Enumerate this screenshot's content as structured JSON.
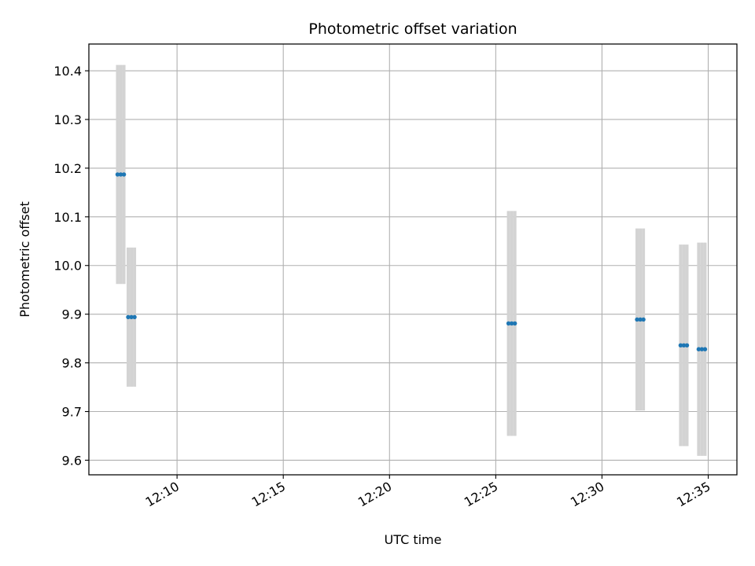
{
  "chart_data": {
    "type": "scatter",
    "title": "Photometric offset variation",
    "xlabel": "UTC time",
    "ylabel": "Photometric offset",
    "x_unit": "minutes after 12:00 UTC",
    "xlim": [
      5.85,
      36.35
    ],
    "ylim": [
      9.57,
      10.455
    ],
    "grid": true,
    "xticks": [
      {
        "value": 10,
        "label": "12:10"
      },
      {
        "value": 15,
        "label": "12:15"
      },
      {
        "value": 20,
        "label": "12:20"
      },
      {
        "value": 25,
        "label": "12:25"
      },
      {
        "value": 30,
        "label": "12:30"
      },
      {
        "value": 35,
        "label": "12:35"
      }
    ],
    "yticks": [
      {
        "value": 9.6,
        "label": "9.6"
      },
      {
        "value": 9.7,
        "label": "9.7"
      },
      {
        "value": 9.8,
        "label": "9.8"
      },
      {
        "value": 9.9,
        "label": "9.9"
      },
      {
        "value": 10.0,
        "label": "10.0"
      },
      {
        "value": 10.1,
        "label": "10.1"
      },
      {
        "value": 10.2,
        "label": "10.2"
      },
      {
        "value": 10.3,
        "label": "10.3"
      },
      {
        "value": 10.4,
        "label": "10.4"
      }
    ],
    "marker_color": "#1f77b4",
    "errorbar_color": "#d3d3d3",
    "groups": [
      {
        "times": [
          7.2,
          7.35,
          7.5
        ],
        "value": 10.187,
        "error": 0.225
      },
      {
        "times": [
          7.7,
          7.85,
          8.0
        ],
        "value": 9.894,
        "error": 0.143
      },
      {
        "times": [
          25.6,
          25.75,
          25.9
        ],
        "value": 9.881,
        "error": 0.231
      },
      {
        "times": [
          31.65,
          31.8,
          31.95
        ],
        "value": 9.889,
        "error": 0.187
      },
      {
        "times": [
          33.7,
          33.85,
          34.0
        ],
        "value": 9.836,
        "error": 0.207
      },
      {
        "times": [
          34.55,
          34.7,
          34.85
        ],
        "value": 9.828,
        "error": 0.219
      }
    ]
  }
}
